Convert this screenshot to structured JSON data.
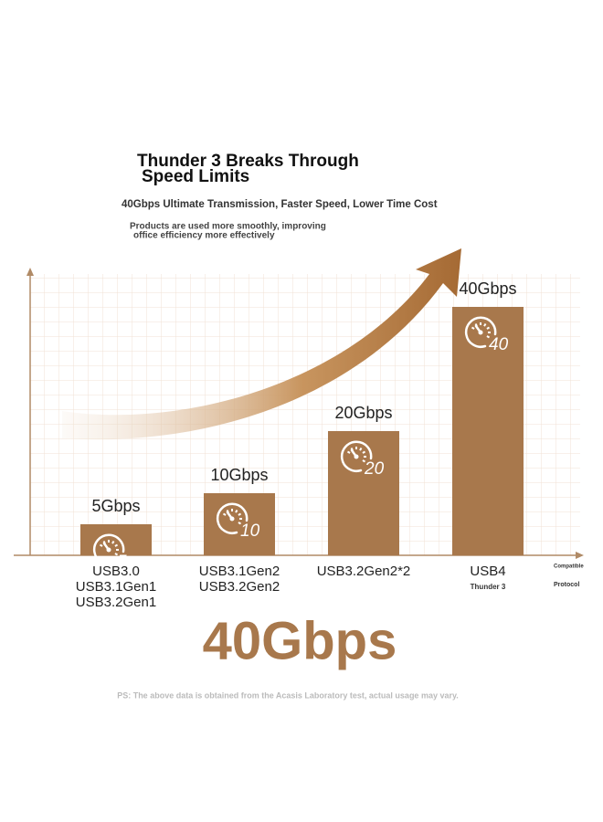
{
  "title": [
    "Thunder 3 Breaks Through",
    "Speed Limits"
  ],
  "subtitle": "40Gbps Ultimate Transmission, Faster Speed, Lower Time Cost",
  "description": [
    "Products are used more smoothly, improving",
    "office efficiency more effectively"
  ],
  "chart_data": {
    "type": "bar",
    "categories": [
      [
        "USB3.0",
        "USB3.1Gen1",
        "USB3.2Gen1"
      ],
      [
        "USB3.1Gen2",
        "USB3.2Gen2"
      ],
      [
        "USB3.2Gen2*2"
      ],
      [
        "USB4"
      ]
    ],
    "category_notes": [
      null,
      null,
      null,
      "Thunder 3"
    ],
    "values": [
      5,
      10,
      20,
      40
    ],
    "value_labels": [
      "5Gbps",
      "10Gbps",
      "20Gbps",
      "40Gbps"
    ],
    "color": "#a8784c",
    "x_label": [
      "Compatible",
      "Protocol"
    ]
  },
  "headline": "40Gbps",
  "footnote": "PS: The above data is obtained from the Acasis Laboratory test, actual usage may vary."
}
